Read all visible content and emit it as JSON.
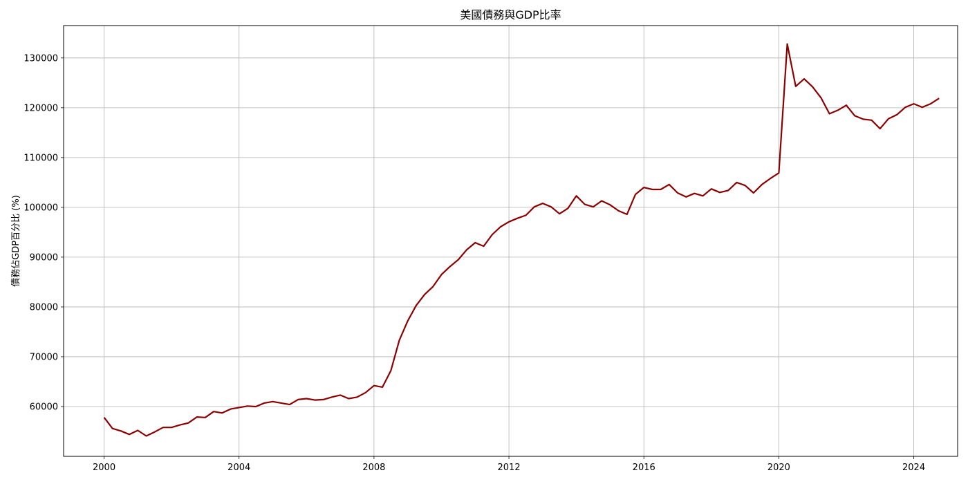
{
  "chart_data": {
    "type": "line",
    "title": "美國債務與GDP比率",
    "xlabel": "",
    "ylabel": "債務佔GDP百分比 (%)",
    "xlim": [
      1998.8,
      2025.3
    ],
    "ylim": [
      50000,
      136500
    ],
    "x_ticks": [
      "2000",
      "2004",
      "2008",
      "2012",
      "2016",
      "2020",
      "2024"
    ],
    "y_ticks": [
      "60000",
      "70000",
      "80000",
      "90000",
      "100000",
      "110000",
      "120000",
      "130000"
    ],
    "grid": true,
    "line_color": "#8b0000",
    "series": [
      {
        "x": [
          2000.0,
          2000.25,
          2000.5,
          2000.75,
          2001.0,
          2001.25,
          2001.5,
          2001.75,
          2002.0,
          2002.25,
          2002.5,
          2002.75,
          2003.0,
          2003.25,
          2003.5,
          2003.75,
          2004.0,
          2004.25,
          2004.5,
          2004.75,
          2005.0,
          2005.25,
          2005.5,
          2005.75,
          2006.0,
          2006.25,
          2006.5,
          2006.75,
          2007.0,
          2007.25,
          2007.5,
          2007.75,
          2008.0,
          2008.25,
          2008.5,
          2008.75,
          2009.0,
          2009.25,
          2009.5,
          2009.75,
          2010.0,
          2010.25,
          2010.5,
          2010.75,
          2011.0,
          2011.25,
          2011.5,
          2011.75,
          2012.0,
          2012.25,
          2012.5,
          2012.75,
          2013.0,
          2013.25,
          2013.5,
          2013.75,
          2014.0,
          2014.25,
          2014.5,
          2014.75,
          2015.0,
          2015.25,
          2015.5,
          2015.75,
          2016.0,
          2016.25,
          2016.5,
          2016.75,
          2017.0,
          2017.25,
          2017.5,
          2017.75,
          2018.0,
          2018.25,
          2018.5,
          2018.75,
          2019.0,
          2019.25,
          2019.5,
          2019.75,
          2020.0,
          2020.25,
          2020.5,
          2020.75,
          2021.0,
          2021.25,
          2021.5,
          2021.75,
          2022.0,
          2022.25,
          2022.5,
          2022.75,
          2023.0,
          2023.25,
          2023.5,
          2023.75,
          2024.0,
          2024.25,
          2024.5,
          2024.75
        ],
        "values": [
          57800,
          55600,
          55100,
          54400,
          55200,
          54100,
          54900,
          55800,
          55800,
          56300,
          56700,
          57900,
          57800,
          59000,
          58700,
          59500,
          59800,
          60100,
          60000,
          60700,
          61000,
          60700,
          60400,
          61400,
          61600,
          61300,
          61400,
          61900,
          62300,
          61600,
          61900,
          62800,
          64200,
          63900,
          67200,
          73300,
          77200,
          80300,
          82500,
          84100,
          86500,
          88100,
          89500,
          91500,
          92900,
          92200,
          94500,
          96100,
          97100,
          97800,
          98400,
          100100,
          100800,
          100100,
          98700,
          99800,
          102300,
          100600,
          100100,
          101300,
          100500,
          99300,
          98600,
          102600,
          104000,
          103600,
          103600,
          104600,
          102900,
          102100,
          102800,
          102300,
          103700,
          103000,
          103400,
          105000,
          104400,
          102900,
          104600,
          105800,
          106900,
          132800,
          124300,
          125800,
          124200,
          122000,
          118800,
          119500,
          120500,
          118400,
          117700,
          117500,
          115800,
          117800,
          118600,
          120100,
          120800,
          120100,
          120800,
          121900
        ]
      }
    ]
  }
}
